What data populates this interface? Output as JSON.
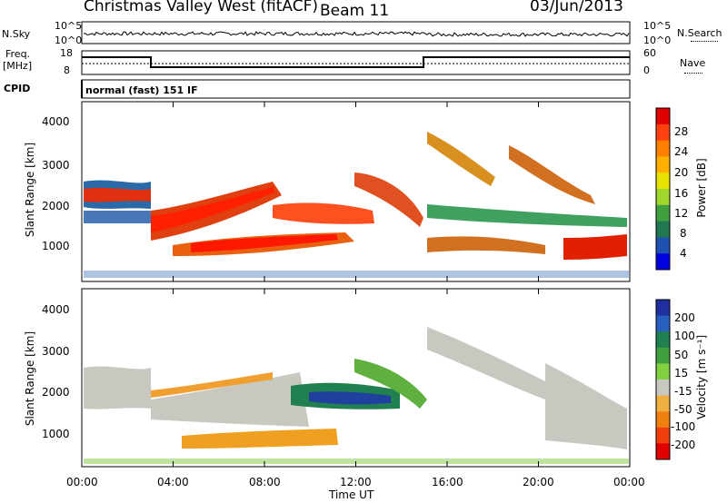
{
  "header": {
    "site": "Christmas Valley West (fitACF)",
    "beam": "Beam 11",
    "date": "03/Jun/2013"
  },
  "top_panels": {
    "nsky_label": "N.Sky",
    "nsky_ticks": [
      "10^5",
      "10^0"
    ],
    "nsearch_label": "N.Search",
    "nsearch_ticks": [
      "10^5",
      "10^0"
    ],
    "freq_label_1": "Freq.",
    "freq_label_2": "[MHz]",
    "freq_ticks": [
      "18",
      "8"
    ],
    "nave_label": "Nave",
    "nave_ticks": [
      "60",
      "0"
    ],
    "cpid_label": "CPID",
    "cpid_value": "normal (fast) 151 IF"
  },
  "chart_data": [
    {
      "type": "heatmap",
      "ylabel": "Slant Range [km]",
      "yticks": [
        "1000",
        "2000",
        "3000",
        "4000"
      ],
      "colorbar_label": "Power [dB]",
      "colorbar_ticks": [
        "28",
        "24",
        "20",
        "16",
        "12",
        "8",
        "4"
      ],
      "colorbar_colors": [
        "#e00000",
        "#ff4010",
        "#ff8000",
        "#ffb000",
        "#e8e000",
        "#a0d830",
        "#40a040",
        "#207850",
        "#2050b0",
        "#0000e0"
      ]
    },
    {
      "type": "heatmap",
      "ylabel": "Slant Range [km]",
      "yticks": [
        "1000",
        "2000",
        "3000",
        "4000"
      ],
      "colorbar_label": "Velocity [m s⁻¹]",
      "colorbar_ticks": [
        "200",
        "100",
        "50",
        "15",
        "-15",
        "-50",
        "-100",
        "-200"
      ],
      "colorbar_colors": [
        "#2030a0",
        "#2860c0",
        "#208050",
        "#40a040",
        "#80d040",
        "#c8c8c0",
        "#f0b040",
        "#f08010",
        "#f04010",
        "#e00000"
      ]
    }
  ],
  "xaxis": {
    "ticks": [
      "00:00",
      "04:00",
      "08:00",
      "12:00",
      "16:00",
      "20:00",
      "00:00"
    ],
    "label": "Time UT"
  }
}
